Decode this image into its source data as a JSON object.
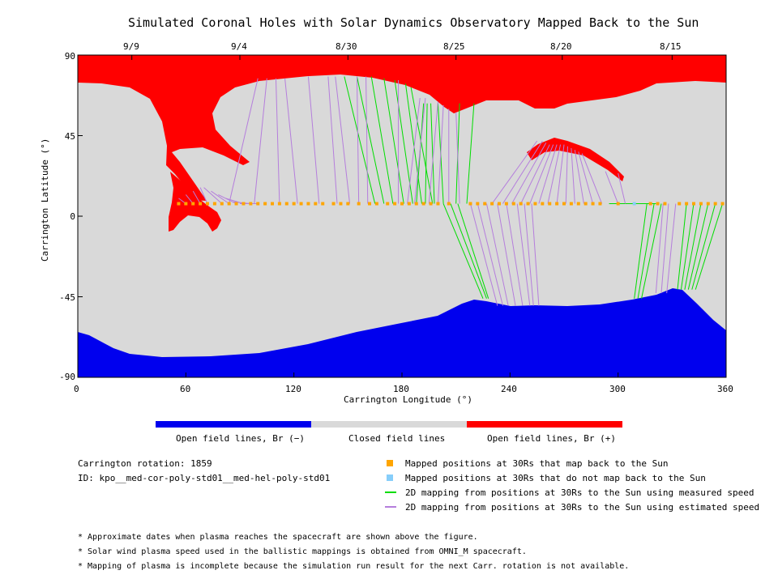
{
  "chart_data": {
    "type": "scatter",
    "title": "Simulated Coronal Holes with Solar Dynamics Observatory Mapped Back to the Sun",
    "xlabel": "Carrington Longitude (°)",
    "ylabel": "Carrington Latitude (°)",
    "xlim": [
      0,
      360
    ],
    "ylim": [
      -90,
      90
    ],
    "x_ticks": [
      "0",
      "60",
      "120",
      "180",
      "240",
      "300",
      "360"
    ],
    "y_ticks": [
      "90",
      "45",
      "0",
      "-45",
      "-90"
    ],
    "top_axis": {
      "labels": [
        "9/9",
        "9/4",
        "8/30",
        "8/25",
        "8/20",
        "8/15"
      ],
      "longitudes": [
        30,
        90,
        150,
        210,
        269,
        330
      ]
    },
    "colors": {
      "open_negative": "#0000ee",
      "closed": "#d9d9d9",
      "open_positive": "#ff0000",
      "mapped": "#ffa500",
      "unmapped": "#87cefa",
      "measured": "#00dd00",
      "estimated": "#b57edc"
    },
    "mapped_point_latitude": 7,
    "mapped_positions_lon": [
      56,
      60,
      64,
      68,
      72,
      76,
      80,
      84,
      88,
      92,
      96,
      100,
      104,
      108,
      112,
      116,
      120,
      124,
      128,
      132,
      136,
      142,
      146,
      150,
      156,
      162,
      166,
      172,
      176,
      180,
      184,
      188,
      192,
      196,
      200,
      206,
      218,
      222,
      226,
      230,
      234,
      238,
      242,
      246,
      250,
      254,
      258,
      262,
      266,
      270,
      274,
      278,
      282,
      286,
      290,
      300,
      318,
      322,
      326,
      334,
      338,
      342,
      346,
      350,
      354,
      358
    ],
    "unmapped_positions_lon": [
      309
    ],
    "mapping_lines": [
      {
        "type": "measured",
        "pairs": [
          [
            165,
            148,
            78
          ],
          [
            170,
            155,
            78
          ],
          [
            175,
            163,
            78
          ],
          [
            181,
            170,
            77
          ],
          [
            186,
            176,
            76
          ],
          [
            191,
            182,
            74
          ],
          [
            197,
            185,
            72
          ],
          [
            203,
            200,
            63
          ],
          [
            210,
            212,
            63
          ],
          [
            216,
            220,
            63
          ],
          [
            313,
            295,
            7
          ],
          [
            317,
            299,
            7
          ],
          [
            321,
            302,
            7
          ],
          [
            203,
            225,
            -46
          ],
          [
            207,
            227,
            -46
          ],
          [
            211,
            228,
            -46
          ],
          [
            316,
            309,
            -46
          ],
          [
            320,
            311,
            -46
          ],
          [
            324,
            313,
            -46
          ],
          [
            338,
            333,
            -41
          ],
          [
            342,
            335,
            -41
          ],
          [
            346,
            337,
            -41
          ],
          [
            350,
            339,
            -41
          ],
          [
            354,
            341,
            -41
          ],
          [
            358,
            343,
            -41
          ],
          [
            198,
            196,
            63
          ],
          [
            193,
            194,
            63
          ],
          [
            188,
            192,
            63
          ]
        ]
      },
      {
        "type": "estimated",
        "pairs": [
          [
            84,
            100,
            77
          ],
          [
            98,
            105,
            77
          ],
          [
            112,
            110,
            77
          ],
          [
            122,
            115,
            77
          ],
          [
            134,
            128,
            78
          ],
          [
            144,
            139,
            78
          ],
          [
            151,
            143,
            78
          ],
          [
            156,
            155,
            78
          ],
          [
            161,
            160,
            78
          ],
          [
            178,
            178,
            76
          ],
          [
            183,
            190,
            66
          ],
          [
            187,
            193,
            66
          ],
          [
            195,
            200,
            64
          ],
          [
            200,
            203,
            62
          ],
          [
            206,
            206,
            60
          ],
          [
            212,
            210,
            58
          ],
          [
            230,
            255,
            42
          ],
          [
            236,
            258,
            42
          ],
          [
            241,
            260,
            41
          ],
          [
            246,
            262,
            40
          ],
          [
            251,
            264,
            40
          ],
          [
            256,
            266,
            40
          ],
          [
            261,
            268,
            40
          ],
          [
            266,
            270,
            40
          ],
          [
            271,
            272,
            39
          ],
          [
            276,
            274,
            38
          ],
          [
            281,
            276,
            37
          ],
          [
            286,
            278,
            36
          ],
          [
            291,
            280,
            35
          ],
          [
            218,
            233,
            -50
          ],
          [
            222,
            236,
            -50
          ],
          [
            227,
            239,
            -50
          ],
          [
            233,
            243,
            -50
          ],
          [
            238,
            247,
            -50
          ],
          [
            244,
            251,
            -50
          ],
          [
            248,
            253,
            -50
          ],
          [
            252,
            256,
            -50
          ],
          [
            325,
            321,
            -43
          ],
          [
            328,
            324,
            -43
          ],
          [
            332,
            327,
            -43
          ],
          [
            304,
            300,
            24
          ],
          [
            300,
            293,
            25
          ],
          [
            80,
            70,
            16
          ],
          [
            84,
            74,
            14
          ],
          [
            88,
            78,
            12
          ],
          [
            92,
            82,
            10
          ],
          [
            96,
            86,
            8
          ],
          [
            100,
            90,
            7
          ],
          [
            60,
            56,
            10
          ],
          [
            64,
            60,
            12
          ],
          [
            68,
            64,
            14
          ],
          [
            72,
            68,
            16
          ]
        ]
      }
    ]
  },
  "legend": {
    "colorbar_labels": [
      "Open field lines, Br (−)",
      "Closed field lines",
      "Open field lines, Br (+)"
    ],
    "rotation": "Carrington rotation: 1859",
    "id": "ID: kpo__med-cor-poly-std01__med-hel-poly-std01",
    "items": [
      {
        "label": "Mapped positions at 30Rs that map back to the Sun",
        "kind": "mapped"
      },
      {
        "label": "Mapped positions at 30Rs that do not map back to the Sun",
        "kind": "unmapped"
      },
      {
        "label": "2D mapping from positions at 30Rs to the Sun using measured speed",
        "kind": "measured"
      },
      {
        "label": "2D mapping from positions at 30Rs to the Sun using estimated speed",
        "kind": "estimated"
      }
    ],
    "notes": [
      "* Approximate dates when plasma reaches the spacecraft are shown above the figure.",
      "* Solar wind plasma speed used in the ballistic mappings is obtained from OMNI_M spacecraft.",
      "* Mapping of plasma is incomplete because the simulation run result for the next Carr. rotation is not available."
    ]
  }
}
